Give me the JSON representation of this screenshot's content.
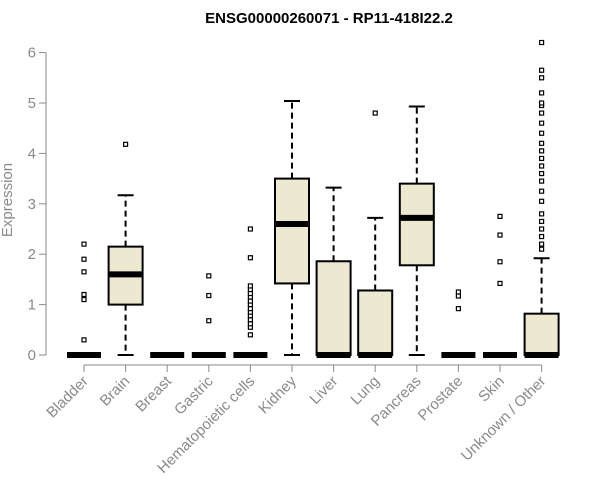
{
  "chart_data": {
    "type": "boxplot",
    "title": "ENSG00000260071 - RP11-418I22.2",
    "xlabel": "",
    "ylabel": "Expression",
    "ylim": [
      0,
      6.2
    ],
    "yticks": [
      0,
      1,
      2,
      3,
      4,
      5,
      6
    ],
    "box_color": "#ede8d0",
    "categories": [
      "Bladder",
      "Brain",
      "Breast",
      "Gastric",
      "Hematopoietic cells",
      "Kidney",
      "Liver",
      "Lung",
      "Pancreas",
      "Prostate",
      "Skin",
      "Unknown / Other"
    ],
    "series": [
      {
        "name": "Bladder",
        "q1": 0,
        "median": 0,
        "q3": 0,
        "whisker_low": 0,
        "whisker_high": 0,
        "outliers": [
          0.3,
          1.1,
          1.2,
          1.65,
          1.9,
          2.2
        ]
      },
      {
        "name": "Brain",
        "q1": 1.0,
        "median": 1.6,
        "q3": 2.15,
        "whisker_low": 0,
        "whisker_high": 3.17,
        "outliers": [
          4.18
        ]
      },
      {
        "name": "Breast",
        "q1": 0,
        "median": 0,
        "q3": 0,
        "whisker_low": 0,
        "whisker_high": 0,
        "outliers": []
      },
      {
        "name": "Gastric",
        "q1": 0,
        "median": 0,
        "q3": 0,
        "whisker_low": 0,
        "whisker_high": 0,
        "outliers": [
          0.68,
          1.18,
          1.57
        ]
      },
      {
        "name": "Hematopoietic cells",
        "q1": 0,
        "median": 0,
        "q3": 0,
        "whisker_low": 0,
        "whisker_high": 0,
        "outliers": [
          0.4,
          0.55,
          0.62,
          0.7,
          0.78,
          0.85,
          0.92,
          1.0,
          1.07,
          1.15,
          1.22,
          1.3,
          1.37,
          1.93,
          2.5
        ]
      },
      {
        "name": "Kidney",
        "q1": 1.42,
        "median": 2.6,
        "q3": 3.5,
        "whisker_low": 0,
        "whisker_high": 5.04,
        "outliers": []
      },
      {
        "name": "Liver",
        "q1": 0,
        "median": 0,
        "q3": 1.86,
        "whisker_low": 0,
        "whisker_high": 3.32,
        "outliers": []
      },
      {
        "name": "Lung",
        "q1": 0,
        "median": 0,
        "q3": 1.28,
        "whisker_low": 0,
        "whisker_high": 2.72,
        "outliers": [
          4.8
        ]
      },
      {
        "name": "Pancreas",
        "q1": 1.78,
        "median": 2.72,
        "q3": 3.4,
        "whisker_low": 0,
        "whisker_high": 4.93,
        "outliers": []
      },
      {
        "name": "Prostate",
        "q1": 0,
        "median": 0,
        "q3": 0,
        "whisker_low": 0,
        "whisker_high": 0,
        "outliers": [
          0.92,
          1.17,
          1.25
        ]
      },
      {
        "name": "Skin",
        "q1": 0,
        "median": 0,
        "q3": 0,
        "whisker_low": 0,
        "whisker_high": 0,
        "outliers": [
          1.42,
          1.85,
          2.38,
          2.75
        ]
      },
      {
        "name": "Unknown / Other",
        "q1": 0,
        "median": 0,
        "q3": 0.82,
        "whisker_low": 0,
        "whisker_high": 1.92,
        "outliers": [
          2.1,
          2.2,
          2.35,
          2.5,
          2.65,
          2.8,
          3.05,
          3.25,
          3.45,
          3.6,
          3.75,
          3.9,
          4.05,
          4.2,
          4.4,
          4.6,
          4.8,
          4.95,
          5.0,
          5.2,
          5.5,
          5.65,
          6.2
        ]
      }
    ]
  }
}
